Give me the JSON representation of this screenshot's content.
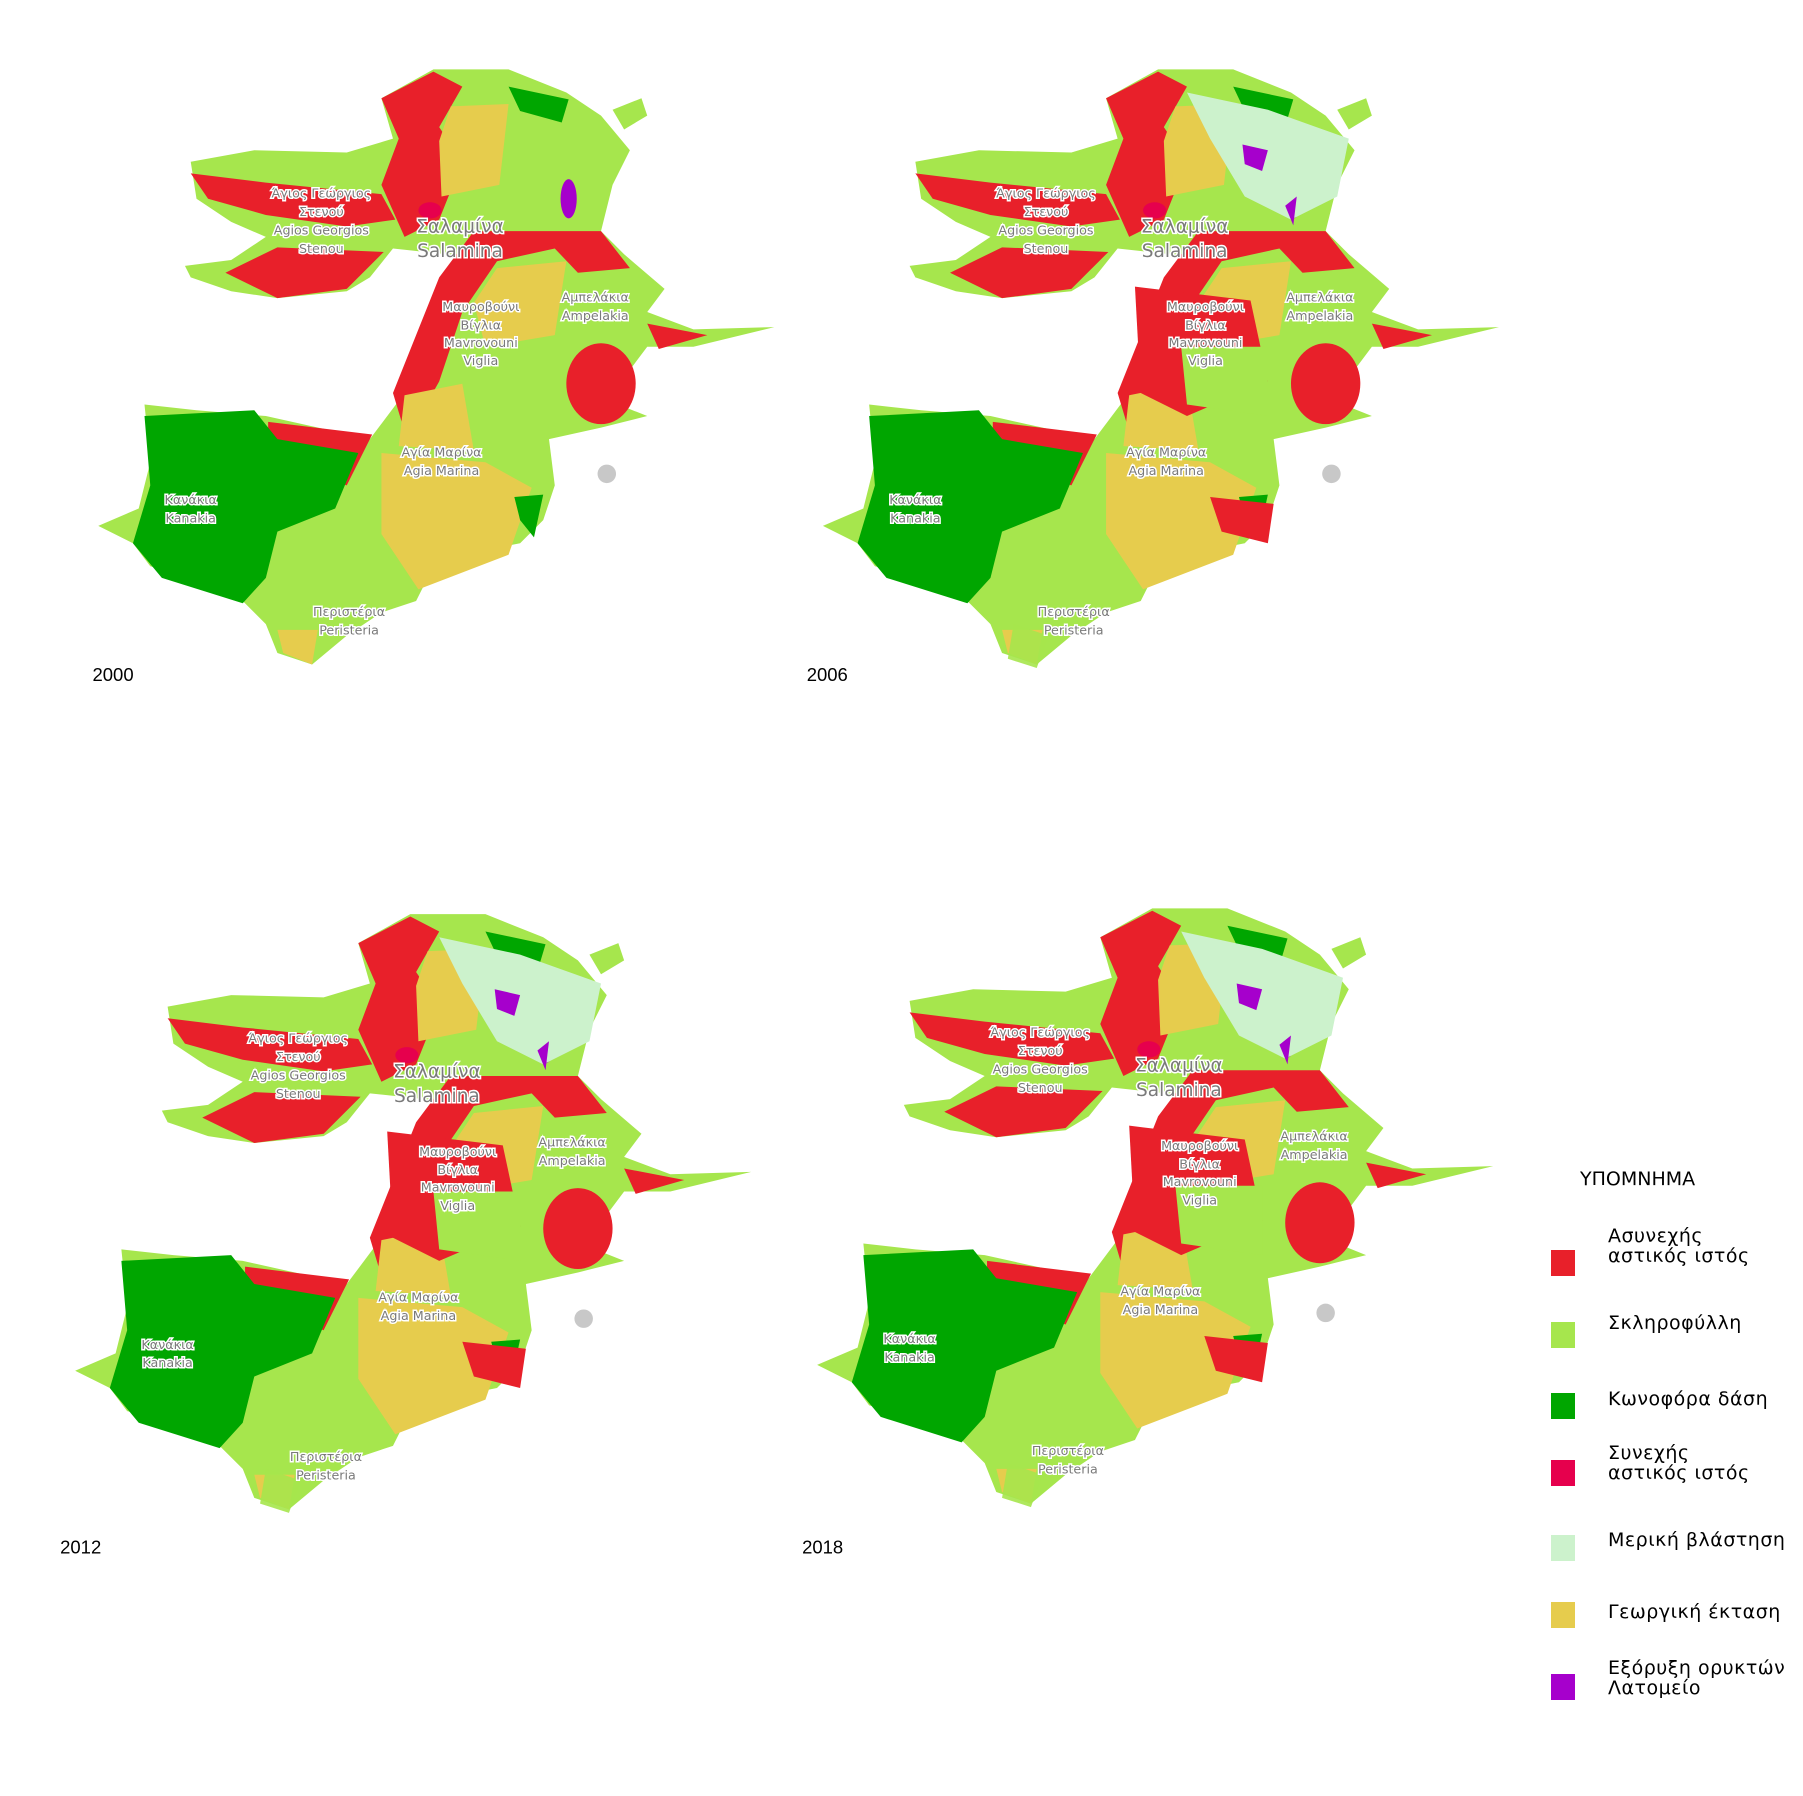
{
  "maps": [
    {
      "year": "2000"
    },
    {
      "year": "2006"
    },
    {
      "year": "2012"
    },
    {
      "year": "2018"
    }
  ],
  "place_labels": [
    "Άγιος Γεώργιος",
    "Στενού",
    "Agios Georgios",
    "Stenou",
    "Σαλαμίνα",
    "Salamina",
    "Μαυροβούνι",
    "Βίγλια",
    "Mavrovouni",
    "Viglia",
    "Αμπελάκια",
    "Ampelakia",
    "Αγία Μαρίνα",
    "Agia Marina",
    "Κανάκια",
    "Kanakia",
    "Περιστέρια",
    "Peristeria"
  ],
  "legend": {
    "title": "ΥΠΟΜΝΗΜΑ",
    "items": [
      {
        "label": "Ασυνεχής αστικός ιστός",
        "color": "#e8202a"
      },
      {
        "label": "Σκληροφύλλη",
        "color": "#a6e64d"
      },
      {
        "label": "Κωνοφόρα δάση",
        "color": "#00a600"
      },
      {
        "label": "Συνεχής αστικός ιστός",
        "color": "#e6004d"
      },
      {
        "label": "Μερική βλάστηση",
        "color": "#ccf2cc"
      },
      {
        "label": "Γεωργική έκταση",
        "color": "#e6cc4d"
      },
      {
        "label": "Εξόρυξη ορυκτών Λατομείο",
        "color": "#a600cc"
      }
    ]
  }
}
